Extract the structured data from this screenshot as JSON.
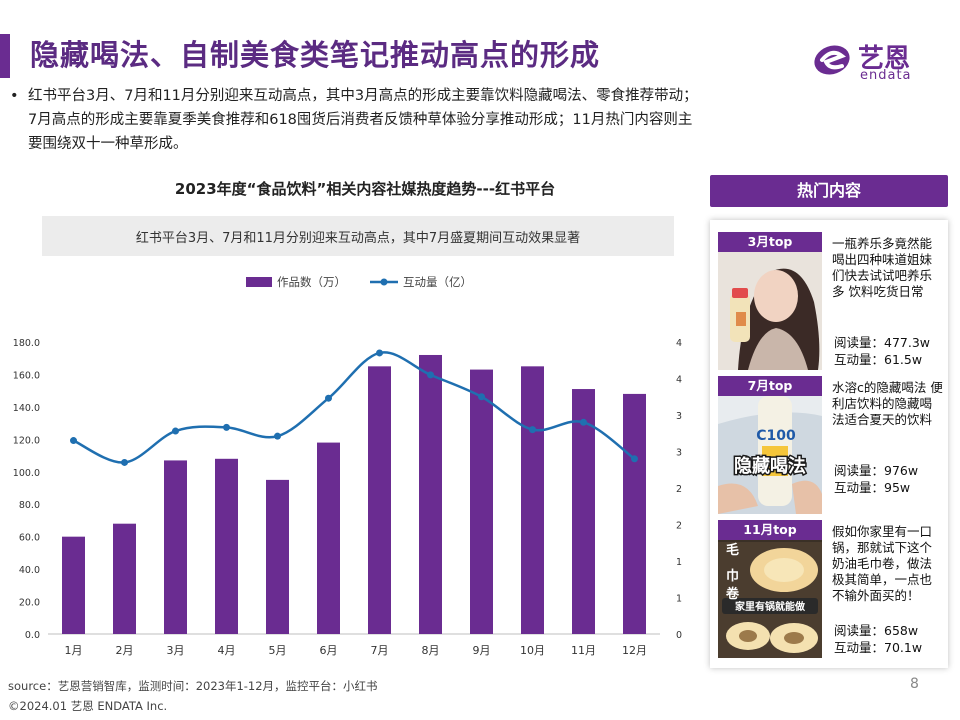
{
  "header": {
    "title": "隐藏喝法、自制美食类笔记推动高点的形成",
    "logo_cn": "艺恩",
    "logo_en": "endata"
  },
  "intro": {
    "bullet": "•",
    "lines": [
      "红书平台3月、7月和11月分别迎来互动高点，其中3月高点的形成主要靠饮料隐藏喝法、零食推荐带动；",
      "7月高点的形成主要靠夏季美食推荐和618囤货后消费者反馈种草体验分享推动形成；11月热门内容则主",
      "要围绕双十一种草形成。"
    ]
  },
  "chart_data": {
    "type": "bar",
    "title": "2023年度“食品饮料”相关内容社媒热度趋势---红书平台",
    "subtitle": "红书平台3月、7月和11月分别迎来互动高点，其中7月盛夏期间互动效果显著",
    "categories": [
      "1月",
      "2月",
      "3月",
      "4月",
      "5月",
      "6月",
      "7月",
      "8月",
      "9月",
      "10月",
      "11月",
      "12月"
    ],
    "series": [
      {
        "name": "作品数（万）",
        "type": "bar",
        "axis": "left",
        "color": "#6a2c91",
        "values": [
          60,
          68,
          107,
          108,
          95,
          118,
          165,
          172,
          163,
          165,
          151,
          148
        ]
      },
      {
        "name": "互动量（亿）",
        "type": "line",
        "axis": "right",
        "color": "#1f6fb0",
        "values": [
          2.65,
          2.35,
          2.78,
          2.83,
          2.71,
          3.23,
          3.85,
          3.55,
          3.25,
          2.8,
          2.9,
          2.4
        ]
      }
    ],
    "y_left": {
      "min": 0,
      "max": 180,
      "step": 20,
      "ticks": [
        "0.0",
        "20.0",
        "40.0",
        "60.0",
        "80.0",
        "100.0",
        "120.0",
        "140.0",
        "160.0",
        "180.0"
      ]
    },
    "y_right": {
      "min": 0,
      "max": 4,
      "ticks": [
        "0",
        "1",
        "1",
        "2",
        "2",
        "3",
        "3",
        "4",
        "4"
      ]
    },
    "legend_position": "top-center",
    "grid": false
  },
  "hot": {
    "header": "热门内容",
    "items": [
      {
        "badge": "3月top",
        "desc": "一瓶养乐多竟然能喝出四种味道姐妹们快去试试吧养乐多 饮料吃货日常",
        "read": "阅读量：477.3w",
        "interact": "互动量：61.5w"
      },
      {
        "badge": "7月top",
        "desc": "水溶c的隐藏喝法 便利店饮料的隐藏喝法适合夏天的饮料",
        "read": "阅读量：976w",
        "interact": "互动量：95w",
        "img_text": "隐藏喝法",
        "img_text2": "C100"
      },
      {
        "badge": "11月top",
        "desc": "假如你家里有一口锅，那就试下这个奶油毛巾卷，做法极其简单，一点也不输外面买的！",
        "read": "阅读量：658w",
        "interact": "互动量：70.1w",
        "img_text": "家里有锅就能做",
        "img_text2": "巾",
        "img_text3": "卷",
        "img_text4": "毛"
      }
    ]
  },
  "footer": {
    "source": "source：艺恩营销智库，监测时间：2023年1-12月，监控平台：小红书",
    "copyright": "©2024.01  艺恩 ENDATA Inc.",
    "page": "8"
  }
}
